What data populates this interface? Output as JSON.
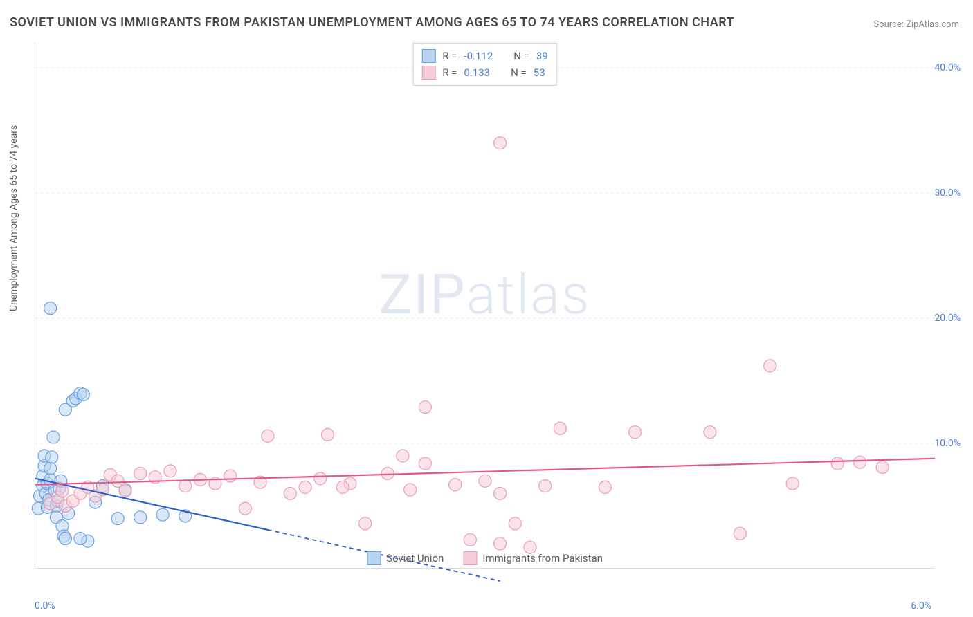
{
  "title": "SOVIET UNION VS IMMIGRANTS FROM PAKISTAN UNEMPLOYMENT AMONG AGES 65 TO 74 YEARS CORRELATION CHART",
  "source_label": "Source:",
  "source_name": "ZipAtlas.com",
  "watermark_a": "ZIP",
  "watermark_b": "atlas",
  "y_axis_label": "Unemployment Among Ages 65 to 74 years",
  "chart": {
    "type": "scatter-correlation",
    "background_color": "#ffffff",
    "grid_color": "#e4e8ee",
    "axis_color": "#d7dce2",
    "text_color": "#5c5c5c",
    "tick_color": "#4b7fd1",
    "xlim": [
      0.0,
      6.0
    ],
    "ylim": [
      0.0,
      42.0
    ],
    "y_ticks": [
      10.0,
      20.0,
      30.0,
      40.0
    ],
    "y_tick_labels": [
      "10.0%",
      "20.0%",
      "30.0%",
      "40.0%"
    ],
    "x_tick_left": {
      "pos": 0.0,
      "label": "0.0%"
    },
    "x_tick_right": {
      "pos": 6.0,
      "label": "6.0%"
    },
    "marker_radius": 9,
    "marker_opacity": 0.55,
    "line_width": 2.2,
    "series": [
      {
        "name": "Soviet Union",
        "fill": "#b9d3f0",
        "stroke": "#6aa1e0",
        "line_color": "#2a5fd0",
        "legend_R": "-0.112",
        "legend_N": "39",
        "trend_start": [
          0.0,
          7.2
        ],
        "trend_solid_end": [
          1.55,
          3.1
        ],
        "trend_dash_end": [
          3.1,
          -1.0
        ],
        "points": [
          [
            0.02,
            4.8
          ],
          [
            0.03,
            5.8
          ],
          [
            0.05,
            6.6
          ],
          [
            0.05,
            7.4
          ],
          [
            0.06,
            8.2
          ],
          [
            0.06,
            9.0
          ],
          [
            0.07,
            6.0
          ],
          [
            0.08,
            6.8
          ],
          [
            0.08,
            4.9
          ],
          [
            0.09,
            5.5
          ],
          [
            0.1,
            7.1
          ],
          [
            0.1,
            8.0
          ],
          [
            0.11,
            8.9
          ],
          [
            0.12,
            10.5
          ],
          [
            0.13,
            6.2
          ],
          [
            0.14,
            5.0
          ],
          [
            0.14,
            4.1
          ],
          [
            0.15,
            5.4
          ],
          [
            0.16,
            6.4
          ],
          [
            0.17,
            7.0
          ],
          [
            0.18,
            3.4
          ],
          [
            0.19,
            2.6
          ],
          [
            0.2,
            2.4
          ],
          [
            0.22,
            4.4
          ],
          [
            0.25,
            13.4
          ],
          [
            0.27,
            13.6
          ],
          [
            0.3,
            14.0
          ],
          [
            0.32,
            13.9
          ],
          [
            0.2,
            12.7
          ],
          [
            0.1,
            20.8
          ],
          [
            0.45,
            6.6
          ],
          [
            0.55,
            4.0
          ],
          [
            0.6,
            6.3
          ],
          [
            0.7,
            4.1
          ],
          [
            0.85,
            4.3
          ],
          [
            1.0,
            4.2
          ],
          [
            0.35,
            2.2
          ],
          [
            0.3,
            2.4
          ],
          [
            0.4,
            5.3
          ]
        ]
      },
      {
        "name": "Immigrants from Pakistan",
        "fill": "#f6cdd8",
        "stroke": "#e99db2",
        "line_color": "#e05c87",
        "legend_R": "0.133",
        "legend_N": "53",
        "trend_start": [
          0.0,
          6.7
        ],
        "trend_solid_end": [
          6.0,
          8.8
        ],
        "points": [
          [
            0.1,
            5.2
          ],
          [
            0.15,
            5.7
          ],
          [
            0.18,
            6.2
          ],
          [
            0.2,
            5.0
          ],
          [
            0.25,
            5.4
          ],
          [
            0.3,
            6.0
          ],
          [
            0.35,
            6.5
          ],
          [
            0.4,
            5.8
          ],
          [
            0.45,
            6.3
          ],
          [
            0.5,
            7.5
          ],
          [
            0.55,
            7.0
          ],
          [
            0.6,
            6.2
          ],
          [
            0.7,
            7.6
          ],
          [
            0.8,
            7.3
          ],
          [
            0.9,
            7.8
          ],
          [
            1.0,
            6.6
          ],
          [
            1.1,
            7.1
          ],
          [
            1.2,
            6.8
          ],
          [
            1.3,
            7.4
          ],
          [
            1.4,
            4.8
          ],
          [
            1.5,
            6.9
          ],
          [
            1.55,
            10.6
          ],
          [
            1.7,
            6.0
          ],
          [
            1.8,
            6.5
          ],
          [
            1.9,
            7.2
          ],
          [
            1.95,
            10.7
          ],
          [
            2.1,
            6.8
          ],
          [
            2.2,
            3.6
          ],
          [
            2.35,
            7.6
          ],
          [
            2.45,
            9.0
          ],
          [
            2.5,
            6.3
          ],
          [
            2.6,
            8.4
          ],
          [
            2.6,
            12.9
          ],
          [
            2.8,
            6.7
          ],
          [
            2.9,
            2.3
          ],
          [
            3.0,
            7.0
          ],
          [
            3.1,
            2.0
          ],
          [
            3.1,
            6.0
          ],
          [
            3.2,
            3.6
          ],
          [
            3.3,
            1.7
          ],
          [
            3.4,
            6.6
          ],
          [
            3.5,
            11.2
          ],
          [
            3.1,
            34.0
          ],
          [
            3.8,
            6.5
          ],
          [
            4.0,
            10.9
          ],
          [
            4.5,
            10.9
          ],
          [
            4.7,
            2.8
          ],
          [
            4.9,
            16.2
          ],
          [
            5.05,
            6.8
          ],
          [
            5.35,
            8.4
          ],
          [
            5.5,
            8.5
          ],
          [
            5.65,
            8.1
          ],
          [
            2.05,
            6.5
          ]
        ]
      }
    ]
  },
  "legend_top_label_R": "R =",
  "legend_top_label_N": "N =",
  "legend_bottom": [
    {
      "name": "Soviet Union"
    },
    {
      "name": "Immigrants from Pakistan"
    }
  ]
}
